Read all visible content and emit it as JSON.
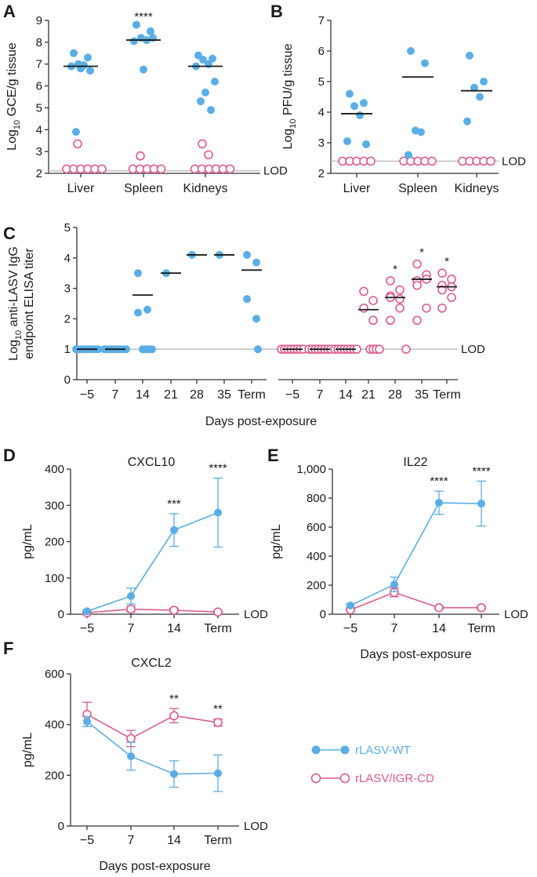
{
  "colors": {
    "wt": "#5aaee6",
    "igr": "#de5b8b",
    "lod_line": "#c4c4c4",
    "axis": "#333333"
  },
  "legend": {
    "wt_label": "rLASV-WT",
    "igr_label": "rLASV/IGR-CD"
  },
  "chart_data": [
    {
      "panel": "A",
      "type": "scatter",
      "ylabel_main": "Log",
      "ylabel_sub": "10",
      "ylabel_rest": " GCE/g tissue",
      "ylim": [
        2,
        9
      ],
      "yticks": [
        "2",
        "3",
        "4",
        "5",
        "6",
        "7",
        "8",
        "9"
      ],
      "categories": [
        "Liver",
        "Spleen",
        "Kidneys"
      ],
      "lod": 2.12,
      "lod_label": "LOD",
      "significance": [
        "",
        "****",
        ""
      ],
      "medians": [
        6.9,
        8.1,
        6.9
      ],
      "wt": [
        [
          7.5,
          7.3,
          7.0,
          6.95,
          6.9,
          6.7,
          6.8,
          3.9
        ],
        [
          8.8,
          8.5,
          8.2,
          8.1,
          8.05,
          8.2,
          6.75
        ],
        [
          7.4,
          7.25,
          7.2,
          7.0,
          6.9,
          6.2,
          5.7,
          5.3,
          4.9
        ]
      ],
      "igr": [
        [
          3.35,
          2.2,
          2.2,
          2.2,
          2.2,
          2.2,
          2.2
        ],
        [
          2.8,
          2.2,
          2.2,
          2.2,
          2.2,
          2.2
        ],
        [
          3.35,
          2.85,
          2.2,
          2.2,
          2.2,
          2.2,
          2.2,
          2.2
        ]
      ]
    },
    {
      "panel": "B",
      "type": "scatter",
      "ylabel_main": "Log",
      "ylabel_sub": "10",
      "ylabel_rest": " PFU/g tissue",
      "ylim": [
        2,
        7
      ],
      "yticks": [
        "2",
        "3",
        "4",
        "5",
        "6",
        "7"
      ],
      "categories": [
        "Liver",
        "Spleen",
        "Kidneys"
      ],
      "lod": 2.4,
      "lod_label": "LOD",
      "significance": [
        "",
        "",
        ""
      ],
      "medians": [
        3.95,
        5.15,
        4.7
      ],
      "wt": [
        [
          4.6,
          4.3,
          4.2,
          3.9,
          3.05,
          2.95
        ],
        [
          6.0,
          5.6,
          3.4,
          3.35,
          2.6
        ],
        [
          5.85,
          5.0,
          4.8,
          4.5,
          3.7
        ]
      ],
      "igr": [
        [
          2.4,
          2.4,
          2.4,
          2.4,
          2.4
        ],
        [
          2.4,
          2.4,
          2.4,
          2.4,
          2.4
        ],
        [
          2.4,
          2.4,
          2.4,
          2.4,
          2.4
        ]
      ]
    },
    {
      "panel": "C",
      "type": "scatter",
      "ylabel_line1": "Log",
      "ylabel_sub": "10",
      "ylabel_line1_rest": " anti-LASV IgG",
      "ylabel_line2": "endpoint ELISA titer",
      "xlabel": "Days post-exposure",
      "ylim": [
        0,
        5
      ],
      "yticks": [
        "0",
        "1",
        "2",
        "3",
        "4",
        "5"
      ],
      "lod": 1,
      "lod_label": "LOD",
      "groups": [
        {
          "series": "wt",
          "categories": [
            "−5",
            "7",
            "14",
            "21",
            "28",
            "35",
            "Term"
          ],
          "medians": [
            1,
            1,
            2.78,
            3.5,
            4.1,
            4.1,
            3.6
          ],
          "significance": [
            "",
            "",
            "",
            "",
            "",
            "",
            ""
          ],
          "points": [
            [
              1,
              1,
              1,
              1,
              1,
              1,
              1,
              1
            ],
            [
              1,
              1,
              1,
              1,
              1,
              1,
              1,
              1
            ],
            [
              3.5,
              2.3,
              2.2,
              1,
              1,
              1,
              1
            ],
            [
              3.5
            ],
            [
              4.1
            ],
            [
              4.1
            ],
            [
              4.1,
              3.85,
              2.65,
              2.0,
              1.0
            ]
          ]
        },
        {
          "series": "igr",
          "categories": [
            "−5",
            "7",
            "14",
            "21",
            "28",
            "35",
            "Term"
          ],
          "medians": [
            1,
            1,
            1,
            2.3,
            2.7,
            3.3,
            3.05
          ],
          "significance": [
            "",
            "",
            "",
            "",
            "*",
            "*",
            "*"
          ],
          "points": [
            [
              1,
              1,
              1,
              1,
              1,
              1,
              1,
              1
            ],
            [
              1,
              1,
              1,
              1,
              1,
              1,
              1,
              1
            ],
            [
              1,
              1,
              1,
              1,
              1,
              1,
              1,
              1
            ],
            [
              2.9,
              2.6,
              2.35,
              1.95,
              1,
              1,
              1,
              1
            ],
            [
              3.25,
              2.95,
              2.75,
              2.65,
              2.7,
              2.35,
              1.95,
              1.0
            ],
            [
              3.8,
              3.45,
              3.25,
              3.3,
              3.1,
              2.35,
              1.95
            ],
            [
              3.5,
              3.3,
              3.1,
              3.05,
              2.95,
              2.7,
              2.35
            ]
          ]
        }
      ]
    },
    {
      "panel": "D",
      "type": "line",
      "title": "CXCL10",
      "ylabel": "pg/mL",
      "ylim": [
        0,
        400
      ],
      "yticks": [
        "0",
        "100",
        "200",
        "300",
        "400"
      ],
      "categories": [
        "−5",
        "7",
        "14",
        "Term"
      ],
      "lod_label": "LOD",
      "xlabel": "",
      "significance": [
        "",
        "",
        "***",
        "****"
      ],
      "series": [
        {
          "name": "rLASV-WT",
          "key": "wt",
          "values": [
            8,
            50,
            232,
            280
          ],
          "err": [
            4,
            22,
            45,
            95
          ]
        },
        {
          "name": "rLASV/IGR-CD",
          "key": "igr",
          "values": [
            4,
            14,
            11,
            6
          ],
          "err": [
            3,
            8,
            5,
            3
          ]
        }
      ]
    },
    {
      "panel": "E",
      "type": "line",
      "title": "IL22",
      "ylabel": "pg/mL",
      "ylim": [
        0,
        1000
      ],
      "yticks": [
        "0",
        "200",
        "400",
        "600",
        "800",
        "1,000"
      ],
      "categories": [
        "−5",
        "7",
        "14",
        "Term"
      ],
      "lod_label": "LOD",
      "xlabel": "Days post-exposure",
      "significance": [
        "",
        "",
        "****",
        "****"
      ],
      "series": [
        {
          "name": "rLASV-WT",
          "key": "wt",
          "values": [
            60,
            205,
            768,
            762
          ],
          "err": [
            12,
            50,
            80,
            155
          ]
        },
        {
          "name": "rLASV/IGR-CD",
          "key": "igr",
          "values": [
            30,
            150,
            45,
            45
          ],
          "err": [
            8,
            30,
            10,
            10
          ]
        }
      ]
    },
    {
      "panel": "F",
      "type": "line",
      "title": "CXCL2",
      "ylabel": "pg/mL",
      "ylim": [
        0,
        600
      ],
      "yticks": [
        "0",
        "200",
        "400",
        "600"
      ],
      "categories": [
        "−5",
        "7",
        "14",
        "Term"
      ],
      "lod_label": "LOD",
      "xlabel": "Days post-exposure",
      "significance": [
        "",
        "",
        "**",
        "**"
      ],
      "series": [
        {
          "name": "rLASV-WT",
          "key": "wt",
          "values": [
            412,
            275,
            205,
            208
          ],
          "err": [
            20,
            55,
            52,
            72
          ]
        },
        {
          "name": "rLASV/IGR-CD",
          "key": "igr",
          "values": [
            440,
            345,
            435,
            408
          ],
          "err": [
            48,
            32,
            28,
            14
          ]
        }
      ]
    }
  ]
}
